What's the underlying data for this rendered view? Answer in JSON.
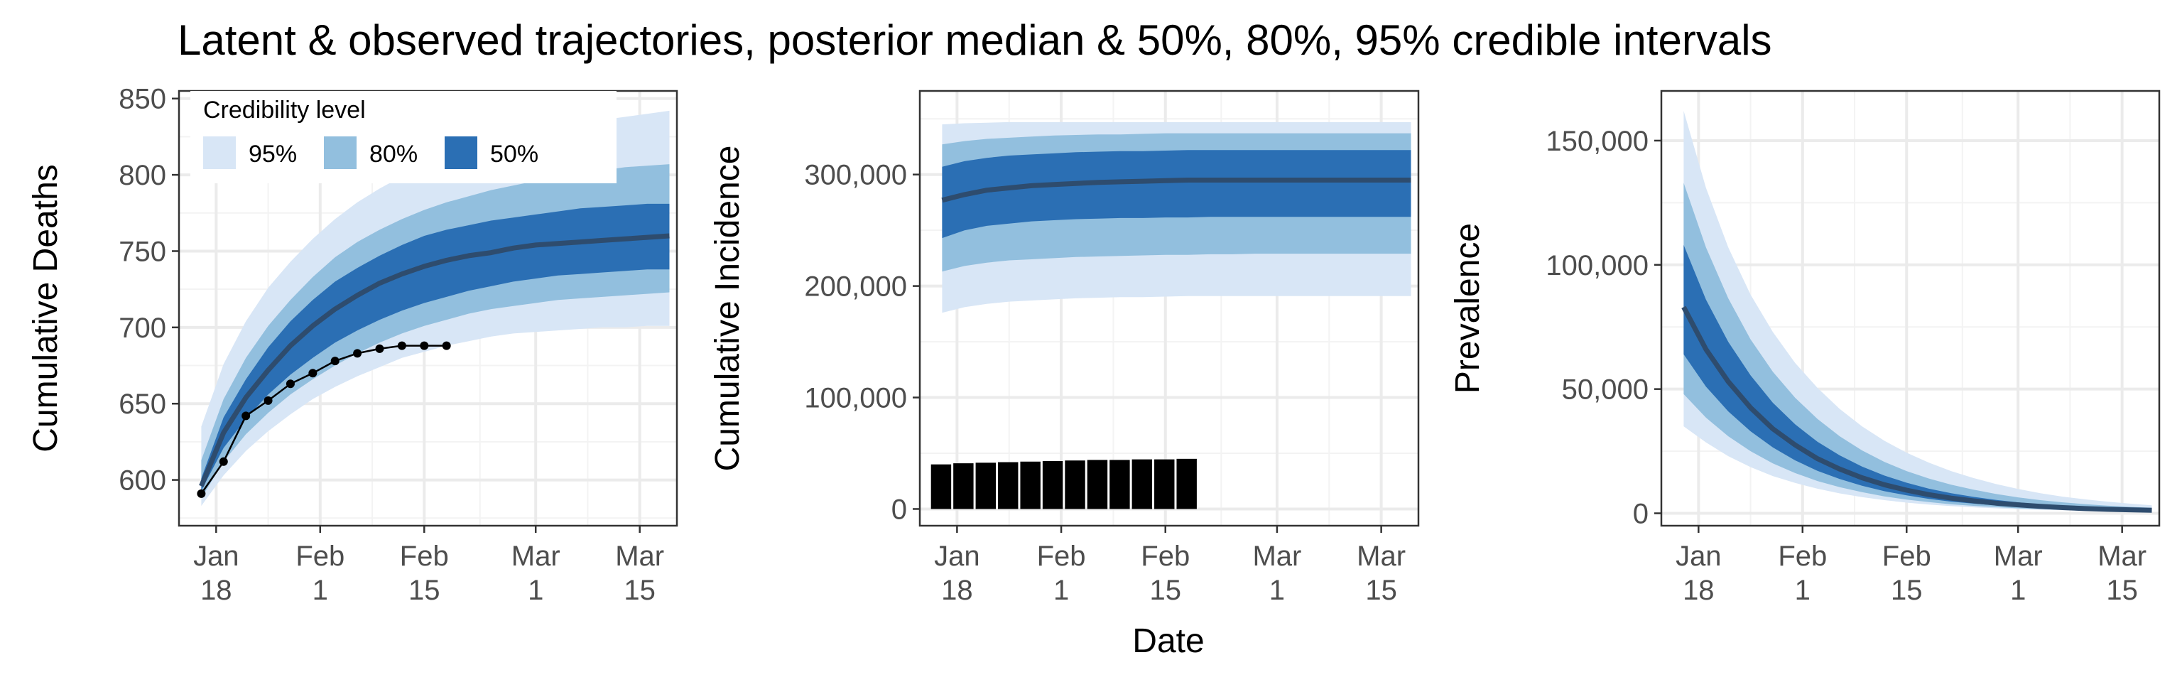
{
  "figure": {
    "title": "Latent & observed trajectories, posterior median & 50%, 80%, 95% credible intervals",
    "xlabel": "Date",
    "colors": {
      "band95": "#d8e6f6",
      "band80": "#92bfde",
      "band50": "#2b6fb4",
      "median": "#2e4c6e",
      "observed": "#000000"
    }
  },
  "legend": {
    "title": "Credibility level",
    "items": [
      {
        "label": "95%",
        "color": "#d8e6f6"
      },
      {
        "label": "80%",
        "color": "#92bfde"
      },
      {
        "label": "50%",
        "color": "#2b6fb4"
      }
    ],
    "placement": "top-left"
  },
  "chart_data": [
    {
      "type": "area",
      "ylabel": "Cumulative Deaths",
      "xlim": [
        "2020-01-13",
        "2020-03-20"
      ],
      "ylim": [
        570,
        855
      ],
      "xticks": [
        {
          "date": "2020-01-18",
          "label": [
            "Jan",
            "18"
          ]
        },
        {
          "date": "2020-02-01",
          "label": [
            "Feb",
            "1"
          ]
        },
        {
          "date": "2020-02-15",
          "label": [
            "Feb",
            "15"
          ]
        },
        {
          "date": "2020-03-01",
          "label": [
            "Mar",
            "1"
          ]
        },
        {
          "date": "2020-03-15",
          "label": [
            "Mar",
            "15"
          ]
        }
      ],
      "yticks": [
        600,
        650,
        700,
        750,
        800,
        850
      ],
      "yticklabels": [
        "600",
        "650",
        "700",
        "750",
        "800",
        "850"
      ],
      "grid": true,
      "x": [
        "2020-01-16",
        "2020-01-19",
        "2020-01-22",
        "2020-01-25",
        "2020-01-28",
        "2020-01-31",
        "2020-02-03",
        "2020-02-06",
        "2020-02-09",
        "2020-02-12",
        "2020-02-15",
        "2020-02-18",
        "2020-02-21",
        "2020-02-24",
        "2020-02-27",
        "2020-03-01",
        "2020-03-04",
        "2020-03-07",
        "2020-03-10",
        "2020-03-13",
        "2020-03-16",
        "2020-03-19"
      ],
      "median": [
        596,
        631,
        654,
        672,
        688,
        701,
        712,
        721,
        729,
        735,
        740,
        744,
        747,
        749,
        752,
        754,
        755,
        756,
        757,
        758,
        759,
        760
      ],
      "band50": {
        "lower": [
          593,
          621,
          640,
          656,
          669,
          680,
          690,
          698,
          705,
          711,
          716,
          720,
          724,
          727,
          730,
          732,
          734,
          735,
          736,
          737,
          738,
          738
        ],
        "upper": [
          601,
          641,
          666,
          687,
          704,
          718,
          730,
          739,
          747,
          754,
          760,
          764,
          767,
          770,
          772,
          774,
          776,
          778,
          779,
          780,
          781,
          781
        ]
      },
      "band80": {
        "lower": [
          588,
          612,
          630,
          644,
          656,
          666,
          675,
          683,
          690,
          696,
          701,
          705,
          709,
          712,
          714,
          716,
          718,
          719,
          720,
          721,
          722,
          723
        ],
        "upper": [
          613,
          653,
          680,
          701,
          718,
          733,
          746,
          756,
          764,
          771,
          777,
          782,
          786,
          790,
          793,
          796,
          799,
          801,
          803,
          805,
          806,
          807
        ]
      },
      "band95": {
        "lower": [
          583,
          603,
          619,
          632,
          643,
          653,
          661,
          668,
          674,
          680,
          684,
          688,
          691,
          694,
          696,
          697,
          698,
          699,
          700,
          700,
          701,
          701
        ],
        "upper": [
          635,
          676,
          704,
          726,
          743,
          758,
          771,
          782,
          791,
          799,
          806,
          812,
          817,
          821,
          825,
          828,
          831,
          834,
          836,
          838,
          840,
          842
        ]
      },
      "observed": {
        "style": "line+points",
        "x": [
          "2020-01-16",
          "2020-01-19",
          "2020-01-22",
          "2020-01-25",
          "2020-01-28",
          "2020-01-31",
          "2020-02-03",
          "2020-02-06",
          "2020-02-09",
          "2020-02-12",
          "2020-02-15",
          "2020-02-18"
        ],
        "values": [
          591,
          612,
          642,
          652,
          663,
          670,
          678,
          683,
          686,
          688,
          688,
          688
        ]
      }
    },
    {
      "type": "area",
      "ylabel": "Cumulative Incidence",
      "xlim": [
        "2020-01-13",
        "2020-03-20"
      ],
      "ylim": [
        -15000,
        375000
      ],
      "xticks": [
        {
          "date": "2020-01-18",
          "label": [
            "Jan",
            "18"
          ]
        },
        {
          "date": "2020-02-01",
          "label": [
            "Feb",
            "1"
          ]
        },
        {
          "date": "2020-02-15",
          "label": [
            "Feb",
            "15"
          ]
        },
        {
          "date": "2020-03-01",
          "label": [
            "Mar",
            "1"
          ]
        },
        {
          "date": "2020-03-15",
          "label": [
            "Mar",
            "15"
          ]
        }
      ],
      "yticks": [
        0,
        100000,
        200000,
        300000
      ],
      "yticklabels": [
        "0",
        "100,000",
        "200,000",
        "300,000"
      ],
      "grid": true,
      "x": [
        "2020-01-16",
        "2020-01-19",
        "2020-01-22",
        "2020-01-25",
        "2020-01-28",
        "2020-01-31",
        "2020-02-03",
        "2020-02-06",
        "2020-02-09",
        "2020-02-12",
        "2020-02-15",
        "2020-02-18",
        "2020-02-21",
        "2020-02-24",
        "2020-02-27",
        "2020-03-01",
        "2020-03-04",
        "2020-03-07",
        "2020-03-10",
        "2020-03-13",
        "2020-03-16",
        "2020-03-19"
      ],
      "median": [
        277000,
        282000,
        286000,
        288000,
        290000,
        291000,
        292000,
        293000,
        293500,
        294000,
        294500,
        295000,
        295000,
        295000,
        295000,
        295000,
        295000,
        295000,
        295000,
        295000,
        295000,
        295000
      ],
      "band50": {
        "lower": [
          243000,
          250000,
          254000,
          256000,
          258000,
          259000,
          260000,
          260500,
          261000,
          261000,
          261500,
          261500,
          262000,
          262000,
          262000,
          262000,
          262000,
          262000,
          262000,
          262000,
          262000,
          262000
        ],
        "upper": [
          307000,
          312000,
          315000,
          317000,
          318000,
          319000,
          320000,
          320500,
          321000,
          321000,
          321500,
          322000,
          322000,
          322000,
          322000,
          322000,
          322000,
          322000,
          322000,
          322000,
          322000,
          322000
        ]
      },
      "band80": {
        "lower": [
          213000,
          218000,
          221000,
          223000,
          224000,
          225000,
          226000,
          226500,
          227000,
          227500,
          228000,
          228000,
          228500,
          228500,
          229000,
          229000,
          229000,
          229000,
          229000,
          229000,
          229000,
          229000
        ],
        "upper": [
          327000,
          330000,
          332000,
          333000,
          334000,
          335000,
          335500,
          336000,
          336000,
          336500,
          337000,
          337000,
          337000,
          337000,
          337000,
          337000,
          337000,
          337000,
          337000,
          337000,
          337000,
          337000
        ]
      },
      "band95": {
        "lower": [
          176000,
          181000,
          184000,
          186000,
          187000,
          188000,
          189000,
          189500,
          190000,
          190000,
          190500,
          191000,
          191000,
          191000,
          191000,
          191000,
          191000,
          191000,
          191000,
          191000,
          191000,
          191000
        ],
        "upper": [
          345000,
          346000,
          346500,
          347000,
          347000,
          347000,
          347000,
          347000,
          347000,
          347000,
          347000,
          347000,
          347000,
          347000,
          347000,
          347000,
          347000,
          347000,
          347000,
          347000,
          347000,
          347000
        ]
      },
      "observed": {
        "style": "bars",
        "x": [
          "2020-01-16",
          "2020-01-19",
          "2020-01-22",
          "2020-01-25",
          "2020-01-28",
          "2020-01-31",
          "2020-02-03",
          "2020-02-06",
          "2020-02-09",
          "2020-02-12",
          "2020-02-15",
          "2020-02-18"
        ],
        "values": [
          40000,
          41000,
          41500,
          42000,
          42500,
          43000,
          43500,
          44000,
          44000,
          44500,
          44500,
          45000
        ]
      }
    },
    {
      "type": "area",
      "ylabel": "Prevalence",
      "xlim": [
        "2020-01-13",
        "2020-03-20"
      ],
      "ylim": [
        -5000,
        170000
      ],
      "xticks": [
        {
          "date": "2020-01-18",
          "label": [
            "Jan",
            "18"
          ]
        },
        {
          "date": "2020-02-01",
          "label": [
            "Feb",
            "1"
          ]
        },
        {
          "date": "2020-02-15",
          "label": [
            "Feb",
            "15"
          ]
        },
        {
          "date": "2020-03-01",
          "label": [
            "Mar",
            "1"
          ]
        },
        {
          "date": "2020-03-15",
          "label": [
            "Mar",
            "15"
          ]
        }
      ],
      "yticks": [
        0,
        50000,
        100000,
        150000
      ],
      "yticklabels": [
        "0",
        "50,000",
        "100,000",
        "150,000"
      ],
      "grid": true,
      "x": [
        "2020-01-16",
        "2020-01-19",
        "2020-01-22",
        "2020-01-25",
        "2020-01-28",
        "2020-01-31",
        "2020-02-03",
        "2020-02-06",
        "2020-02-09",
        "2020-02-12",
        "2020-02-15",
        "2020-02-18",
        "2020-02-21",
        "2020-02-24",
        "2020-02-27",
        "2020-03-01",
        "2020-03-04",
        "2020-03-07",
        "2020-03-10",
        "2020-03-13",
        "2020-03-16",
        "2020-03-19"
      ],
      "median": [
        83000,
        66000,
        53000,
        42500,
        34000,
        27500,
        22000,
        17800,
        14300,
        11500,
        9300,
        7500,
        6100,
        5000,
        4100,
        3400,
        2800,
        2300,
        1900,
        1600,
        1400,
        1200
      ],
      "band50": {
        "lower": [
          64000,
          51000,
          41000,
          33000,
          26500,
          21300,
          17100,
          13800,
          11100,
          8900,
          7200,
          5800,
          4700,
          3900,
          3200,
          2600,
          2200,
          1800,
          1500,
          1300,
          1100,
          1000
        ],
        "upper": [
          108000,
          86000,
          69000,
          55500,
          44500,
          35800,
          28800,
          23300,
          18800,
          15200,
          12300,
          9900,
          8100,
          6600,
          5400,
          4400,
          3600,
          3000,
          2500,
          2100,
          1800,
          1600
        ]
      },
      "band80": {
        "lower": [
          48000,
          38500,
          31000,
          25000,
          20100,
          16200,
          13000,
          10500,
          8500,
          6800,
          5500,
          4500,
          3600,
          3000,
          2500,
          2000,
          1700,
          1400,
          1200,
          1000,
          900,
          800
        ],
        "upper": [
          133000,
          107000,
          86500,
          70000,
          57000,
          46500,
          38000,
          31000,
          25300,
          20700,
          17000,
          14000,
          11500,
          9500,
          7800,
          6400,
          5300,
          4400,
          3700,
          3100,
          2600,
          2200
        ]
      },
      "band95": {
        "lower": [
          35000,
          28500,
          23000,
          18600,
          15000,
          12200,
          9900,
          8000,
          6500,
          5300,
          4300,
          3500,
          2900,
          2400,
          2000,
          1600,
          1400,
          1200,
          1000,
          850,
          700,
          600
        ],
        "upper": [
          162000,
          131000,
          107000,
          88000,
          73000,
          60500,
          50500,
          42000,
          35000,
          29200,
          24400,
          20400,
          17000,
          14200,
          11800,
          9800,
          8100,
          6700,
          5600,
          4700,
          3900,
          3200
        ]
      },
      "observed": null
    }
  ]
}
